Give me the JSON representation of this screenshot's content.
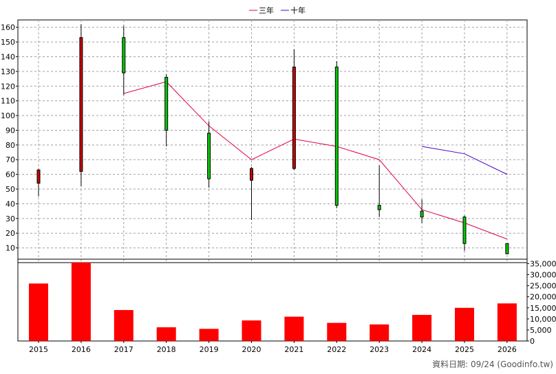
{
  "chart_data": {
    "type": "candlestick",
    "years": [
      "2015",
      "2016",
      "2017",
      "2018",
      "2019",
      "2020",
      "2021",
      "2022",
      "2023",
      "2024",
      "2025",
      "2026"
    ],
    "candles": [
      {
        "year": "2015",
        "open": 63,
        "close": 54,
        "high": 64,
        "low": 45
      },
      {
        "year": "2016",
        "open": 153,
        "close": 62,
        "high": 162,
        "low": 52
      },
      {
        "year": "2017",
        "open": 129,
        "close": 153,
        "high": 161,
        "low": 114
      },
      {
        "year": "2018",
        "open": 90,
        "close": 126,
        "high": 128,
        "low": 79
      },
      {
        "year": "2019",
        "open": 57,
        "close": 88,
        "high": 96,
        "low": 51
      },
      {
        "year": "2020",
        "open": 64,
        "close": 56,
        "high": 65,
        "low": 29
      },
      {
        "year": "2021",
        "open": 133,
        "close": 64,
        "high": 145,
        "low": 63
      },
      {
        "year": "2022",
        "open": 39,
        "close": 133,
        "high": 137,
        "low": 37
      },
      {
        "year": "2023",
        "open": 36,
        "close": 39,
        "high": 66,
        "low": 31
      },
      {
        "year": "2024",
        "open": 31,
        "close": 35,
        "high": 43,
        "low": 27
      },
      {
        "year": "2025",
        "open": 13,
        "close": 31,
        "high": 32,
        "low": 8
      },
      {
        "year": "2026",
        "open": 6,
        "close": 13,
        "high": 13,
        "low": 6
      }
    ],
    "series": [
      {
        "name": "三年",
        "color": "#e0004a",
        "points": [
          [
            "2017",
            115
          ],
          [
            "2018",
            123
          ],
          [
            "2019",
            93
          ],
          [
            "2020",
            70
          ],
          [
            "2021",
            84
          ],
          [
            "2022",
            79
          ],
          [
            "2023",
            70
          ],
          [
            "2024",
            36
          ],
          [
            "2025",
            27
          ],
          [
            "2026",
            16
          ]
        ]
      },
      {
        "name": "十年",
        "color": "#4b00c8",
        "points": [
          [
            "2024",
            79
          ],
          [
            "2025",
            74
          ],
          [
            "2026",
            60
          ]
        ]
      }
    ],
    "volume": [
      26000,
      35500,
      14000,
      6200,
      5500,
      9300,
      11000,
      8200,
      7500,
      11800,
      15000,
      17000
    ],
    "price_axis": {
      "min": 0,
      "max": 165,
      "ticks": [
        10,
        20,
        30,
        40,
        50,
        60,
        70,
        80,
        90,
        100,
        110,
        120,
        130,
        140,
        150,
        160
      ]
    },
    "volume_axis": {
      "min": 0,
      "max": 37000,
      "ticks": [
        0,
        5000,
        10000,
        15000,
        20000,
        25000,
        30000,
        35000
      ],
      "tick_labels": [
        "0",
        "5,000",
        "10,000",
        "15,000",
        "20,000",
        "25,000",
        "30,000",
        "35,000"
      ]
    },
    "colors": {
      "up": "#00c800",
      "down": "#c80000",
      "volume": "#ff0000",
      "grid": "#a0a0a0"
    },
    "grid": true,
    "legend_position": "top-center"
  },
  "footer_text": "資料日期: 09/24  (Goodinfo.tw)"
}
